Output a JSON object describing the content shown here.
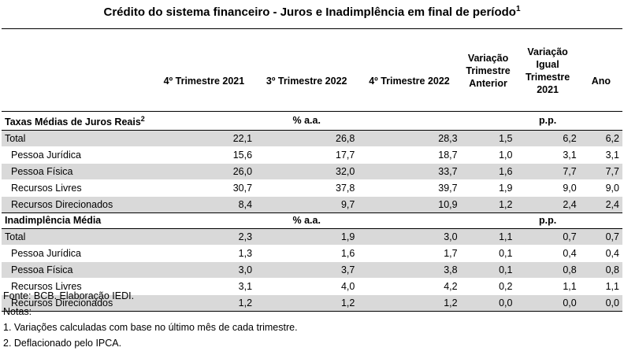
{
  "title": "Crédito do  sistema financeiro - Juros e Inadimplência em final de período",
  "title_sup": "1",
  "columns": [
    "",
    "4º Trimestre 2021",
    "3º Trimestre 2022",
    "4º Trimestre 2022",
    "Variação Trimestre Anterior",
    "Variação Igual Trimestre 2021",
    "Ano"
  ],
  "sections": [
    {
      "label": "Taxas Médias de Juros Reais",
      "label_sup": "2",
      "unit_left": "% a.a.",
      "unit_right": "p.p.",
      "rows": [
        {
          "label": "Total",
          "indent": false,
          "values": [
            "22,1",
            "26,8",
            "28,3",
            "1,5",
            "6,2",
            "6,2"
          ]
        },
        {
          "label": "Pessoa Jurídica",
          "indent": true,
          "values": [
            "15,6",
            "17,7",
            "18,7",
            "1,0",
            "3,1",
            "3,1"
          ]
        },
        {
          "label": "Pessoa Física",
          "indent": true,
          "values": [
            "26,0",
            "32,0",
            "33,7",
            "1,6",
            "7,7",
            "7,7"
          ]
        },
        {
          "label": "Recursos Livres",
          "indent": true,
          "values": [
            "30,7",
            "37,8",
            "39,7",
            "1,9",
            "9,0",
            "9,0"
          ]
        },
        {
          "label": "Recursos Direcionados",
          "indent": true,
          "values": [
            "8,4",
            "9,7",
            "10,9",
            "1,2",
            "2,4",
            "2,4"
          ]
        }
      ]
    },
    {
      "label": "Inadimplência Média",
      "label_sup": "",
      "unit_left": "% a.a.",
      "unit_right": "p.p.",
      "rows": [
        {
          "label": "Total",
          "indent": false,
          "values": [
            "2,3",
            "1,9",
            "3,0",
            "1,1",
            "0,7",
            "0,7"
          ]
        },
        {
          "label": "Pessoa Jurídica",
          "indent": true,
          "values": [
            "1,3",
            "1,6",
            "1,7",
            "0,1",
            "0,4",
            "0,4"
          ]
        },
        {
          "label": "Pessoa Física",
          "indent": true,
          "values": [
            "3,0",
            "3,7",
            "3,8",
            "0,1",
            "0,8",
            "0,8"
          ]
        },
        {
          "label": "Recursos Livres",
          "indent": true,
          "values": [
            "3,1",
            "4,0",
            "4,2",
            "0,2",
            "1,1",
            "1,1"
          ]
        },
        {
          "label": "Recursos Direcionados",
          "indent": true,
          "values": [
            "1,2",
            "1,2",
            "1,2",
            "0,0",
            "0,0",
            "0,0"
          ]
        }
      ]
    }
  ],
  "notes": [
    "Fonte: BCB. Elaboração IEDI.",
    "Notas:",
    "1.  Variações calculadas com base no último mês de cada trimestre.",
    "2. Deflacionado pelo IPCA."
  ]
}
